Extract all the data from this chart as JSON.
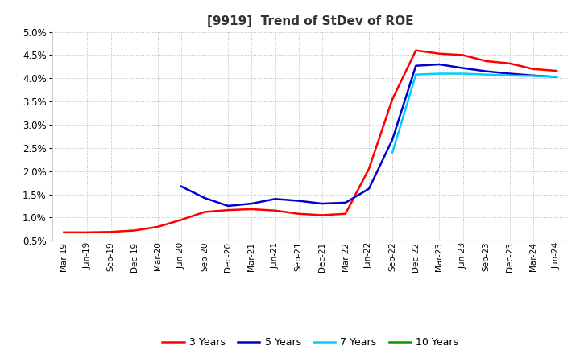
{
  "title": "[9919]  Trend of StDev of ROE",
  "title_fontsize": 11,
  "ylim": [
    0.005,
    0.05
  ],
  "yticks": [
    0.005,
    0.01,
    0.015,
    0.02,
    0.025,
    0.03,
    0.035,
    0.04,
    0.045,
    0.05
  ],
  "ytick_labels": [
    "0.5%",
    "1.0%",
    "1.5%",
    "2.0%",
    "2.5%",
    "3.0%",
    "3.5%",
    "4.0%",
    "4.5%",
    "5.0%"
  ],
  "background_color": "#ffffff",
  "grid_color": "#999999",
  "legend_entries": [
    "3 Years",
    "5 Years",
    "7 Years",
    "10 Years"
  ],
  "legend_colors": [
    "#ff0000",
    "#0000cc",
    "#00ccff",
    "#009900"
  ],
  "x_labels": [
    "Mar-19",
    "Jun-19",
    "Sep-19",
    "Dec-19",
    "Mar-20",
    "Jun-20",
    "Sep-20",
    "Dec-20",
    "Mar-21",
    "Jun-21",
    "Sep-21",
    "Dec-21",
    "Mar-22",
    "Jun-22",
    "Sep-22",
    "Dec-22",
    "Mar-23",
    "Jun-23",
    "Sep-23",
    "Dec-23",
    "Mar-24",
    "Jun-24"
  ],
  "series_3y": [
    0.0068,
    0.0068,
    0.0069,
    0.0072,
    0.008,
    0.0095,
    0.0112,
    0.0116,
    0.0118,
    0.0115,
    0.0108,
    0.0105,
    0.0108,
    0.0205,
    0.0355,
    0.046,
    0.0453,
    0.045,
    0.0437,
    0.0432,
    0.042,
    0.0416
  ],
  "series_5y": [
    null,
    null,
    null,
    null,
    null,
    0.0167,
    0.0142,
    0.0125,
    0.013,
    0.014,
    0.0136,
    0.013,
    0.0132,
    0.0162,
    0.0268,
    0.0427,
    0.043,
    0.0422,
    0.0415,
    0.041,
    0.0406,
    0.0403
  ],
  "series_7y": [
    null,
    null,
    null,
    null,
    null,
    null,
    null,
    null,
    null,
    null,
    null,
    null,
    null,
    null,
    0.024,
    0.0408,
    0.041,
    0.041,
    0.0408,
    0.0406,
    0.0405,
    0.0403
  ],
  "series_10y": [
    null,
    null,
    null,
    null,
    null,
    null,
    null,
    null,
    null,
    null,
    null,
    null,
    null,
    null,
    null,
    null,
    null,
    null,
    null,
    null,
    null,
    null
  ]
}
